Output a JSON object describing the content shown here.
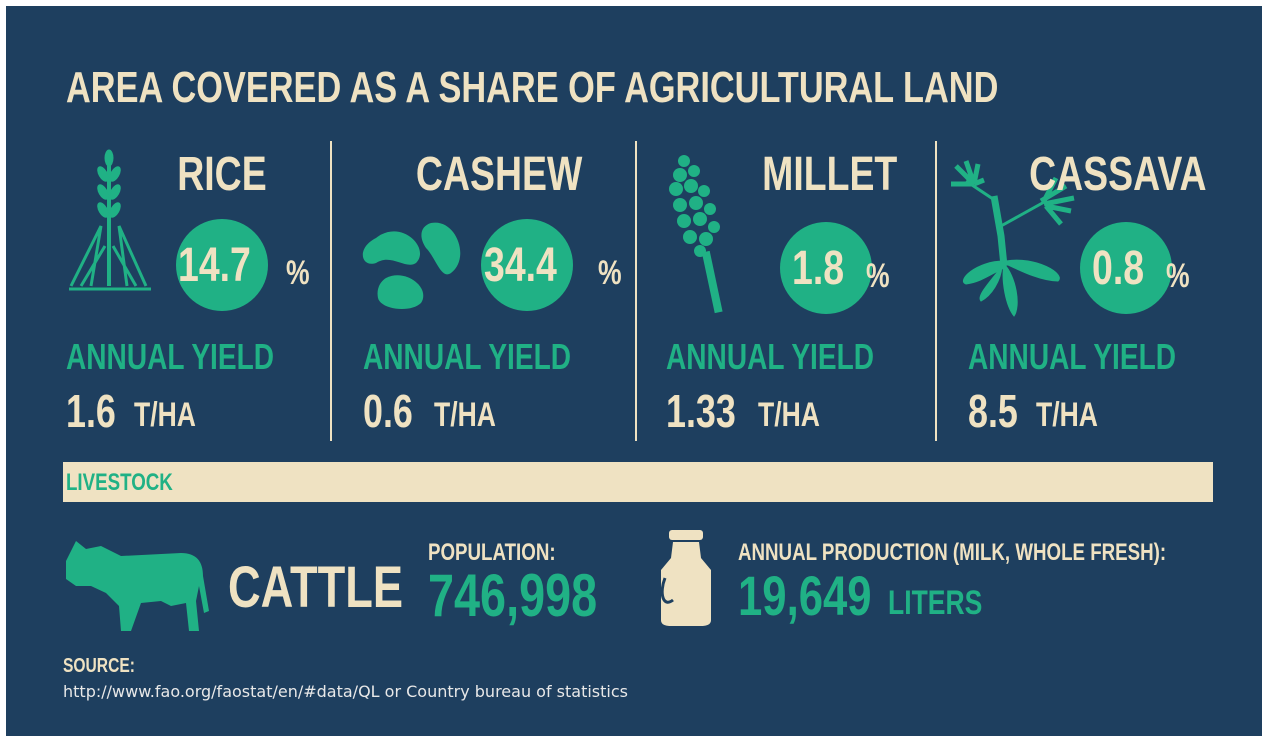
{
  "header": {
    "title": "AREA COVERED AS A SHARE OF AGRICULTURAL LAND"
  },
  "crops": [
    {
      "name": "RICE",
      "share": "14.7",
      "share_unit": "%",
      "yield_label": "ANNUAL YIELD",
      "yield": "1.6",
      "yield_unit": "T/HA"
    },
    {
      "name": "CASHEW",
      "share": "34.4",
      "share_unit": "%",
      "yield_label": "ANNUAL YIELD",
      "yield": "0.6",
      "yield_unit": "T/HA"
    },
    {
      "name": "MILLET",
      "share": "1.8",
      "share_unit": "%",
      "yield_label": "ANNUAL YIELD",
      "yield": "1.33",
      "yield_unit": "T/HA"
    },
    {
      "name": "CASSAVA",
      "share": "0.8",
      "share_unit": "%",
      "yield_label": "ANNUAL YIELD",
      "yield": "8.5",
      "yield_unit": "T/HA"
    }
  ],
  "livestock": {
    "title": "LIVESTOCK",
    "animal": "CATTLE",
    "population_label": "POPULATION:",
    "population": "746,998",
    "production_label": "ANNUAL PRODUCTION (MILK, WHOLE FRESH):",
    "production": "19,649",
    "production_unit": "LITERS"
  },
  "source": {
    "label": "SOURCE:",
    "text": "http://www.fao.org/faostat/en/#data/QL or Country bureau of statistics"
  }
}
